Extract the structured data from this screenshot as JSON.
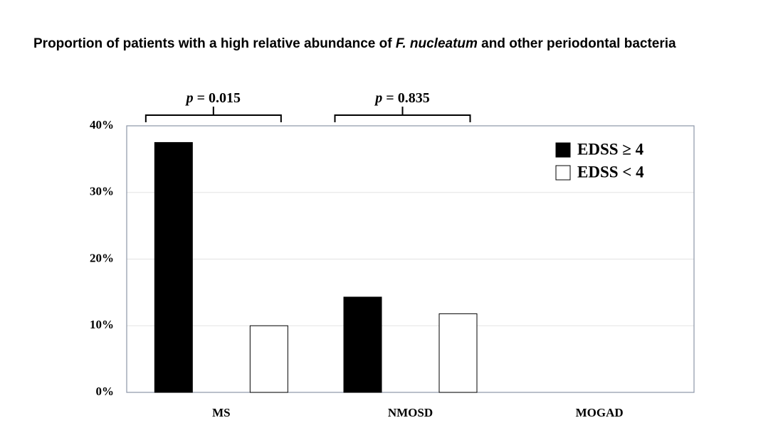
{
  "chart_data": {
    "type": "bar",
    "title": [
      "Proportion of patients with a high relative abundance of ",
      "F. nucleatum",
      " and other periodontal bacteria"
    ],
    "categories": [
      "MS",
      "NMOSD",
      "MOGAD"
    ],
    "series": [
      {
        "name": "EDSS ≥ 4",
        "color": "#000000",
        "values": [
          37.5,
          14.3,
          0
        ]
      },
      {
        "name": "EDSS < 4",
        "color": "#ffffff",
        "values": [
          10,
          11.8,
          0
        ]
      }
    ],
    "ylim": [
      0,
      40
    ],
    "yticks": [
      {
        "value": 0,
        "label": "0%"
      },
      {
        "value": 10,
        "label": "10%"
      },
      {
        "value": 20,
        "label": "20%"
      },
      {
        "value": 30,
        "label": "30%"
      },
      {
        "value": 40,
        "label": "40%"
      }
    ],
    "grid": true,
    "legend": "upper right",
    "annotations": [
      [
        "p",
        " = 0.015"
      ],
      [
        "p",
        " = 0.835"
      ]
    ]
  }
}
